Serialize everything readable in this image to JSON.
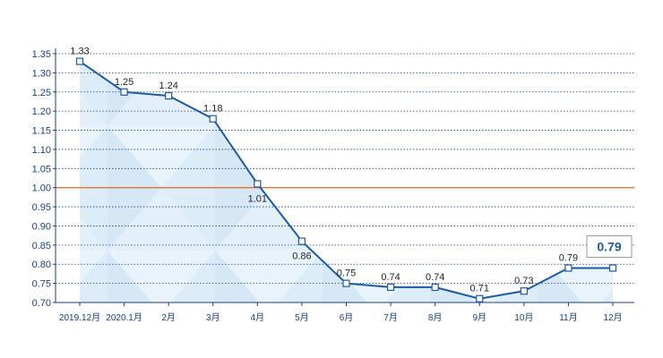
{
  "chart_data": {
    "type": "line",
    "title": "",
    "xlabel": "",
    "ylabel": "",
    "categories": [
      "2019.12月",
      "2020.1月",
      "2月",
      "3月",
      "4月",
      "5月",
      "6月",
      "7月",
      "8月",
      "9月",
      "10月",
      "11月",
      "12月"
    ],
    "series": [
      {
        "values": [
          1.33,
          1.25,
          1.24,
          1.18,
          1.01,
          0.86,
          0.75,
          0.74,
          0.74,
          0.71,
          0.73,
          0.79,
          0.79
        ]
      }
    ],
    "data_labels": [
      "1.33",
      "1.25",
      "1.24",
      "1.18",
      "1.01",
      "0.86",
      "0.75",
      "0.74",
      "0.74",
      "0.71",
      "0.73",
      "0.79",
      "0.79"
    ],
    "highlight_label": "0.79",
    "reference_line": 1.0,
    "ylim": [
      0.7,
      1.35
    ],
    "yticks": [
      "0.70",
      "0.75",
      "0.80",
      "0.85",
      "0.90",
      "0.95",
      "1.00",
      "1.05",
      "1.10",
      "1.15",
      "1.20",
      "1.25",
      "1.30",
      "1.35"
    ],
    "grid": true,
    "colors": {
      "line": "#1a5aa8",
      "marker_fill": "#ffffff",
      "grid": "#1a3f87",
      "reference_line": "#e8732f",
      "axis": "#1a3f87",
      "area_light": "#e8f3fb",
      "area_dark": "#cfe4f4",
      "highlight_border": "#999999"
    }
  }
}
